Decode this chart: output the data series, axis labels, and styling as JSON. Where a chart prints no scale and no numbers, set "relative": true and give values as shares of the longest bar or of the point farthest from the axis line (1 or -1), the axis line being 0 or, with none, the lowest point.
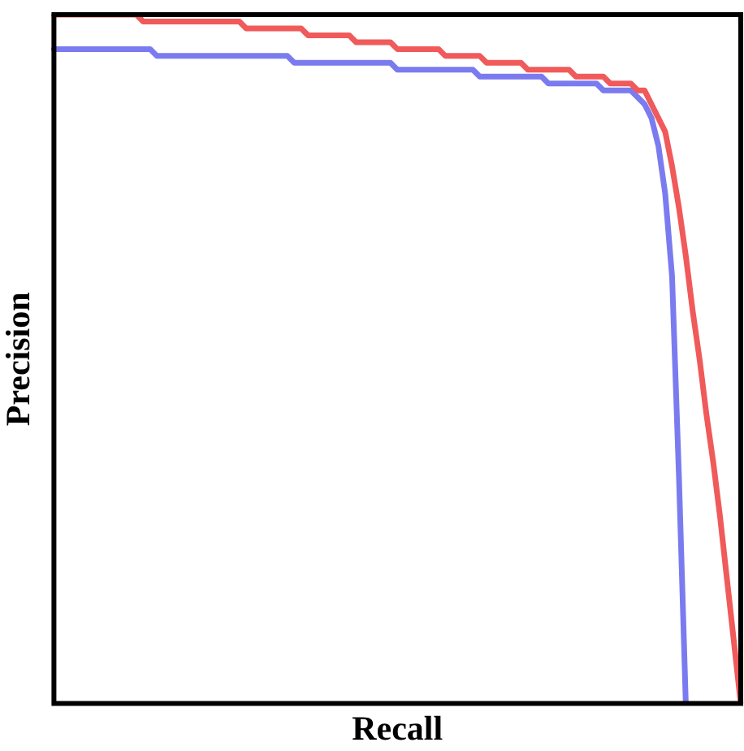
{
  "chart_data": {
    "type": "line",
    "xlabel": "Recall",
    "ylabel": "Precision",
    "relative": true,
    "grid": false,
    "legend": false,
    "marker": "none",
    "line_style": "solid",
    "categories": [
      null,
      null,
      null,
      null,
      null,
      null,
      null,
      null,
      null,
      null,
      null,
      null,
      null,
      null,
      null,
      null,
      null,
      null,
      null,
      null,
      null,
      null,
      null,
      null,
      null,
      null,
      null,
      null,
      null,
      null,
      null,
      null,
      null,
      null,
      null,
      null,
      null,
      null,
      null,
      null,
      null,
      null,
      null,
      null,
      null,
      null,
      null,
      null,
      null,
      null,
      null,
      null,
      null,
      null,
      null,
      null,
      null,
      null,
      null,
      null,
      null,
      null,
      null,
      null,
      null,
      null,
      null,
      null,
      null,
      null,
      null,
      null,
      null,
      null,
      null,
      null,
      null,
      null,
      null,
      null,
      null,
      null,
      null,
      null,
      null,
      null,
      null,
      null,
      null,
      null,
      null,
      null,
      null,
      null,
      null,
      null,
      null,
      null,
      null,
      null,
      null
    ],
    "series": [
      {
        "color": "#f05a5a",
        "values": [
          1,
          1,
          1,
          1,
          1,
          1,
          1,
          1,
          1,
          1,
          1,
          1,
          1,
          0.99,
          0.99,
          0.99,
          0.99,
          0.99,
          0.99,
          0.99,
          0.99,
          0.99,
          0.99,
          0.99,
          0.99,
          0.99,
          0.99,
          0.99,
          0.98,
          0.98,
          0.98,
          0.98,
          0.98,
          0.98,
          0.98,
          0.98,
          0.98,
          0.97,
          0.97,
          0.97,
          0.97,
          0.97,
          0.97,
          0.97,
          0.96,
          0.96,
          0.96,
          0.96,
          0.96,
          0.96,
          0.95,
          0.95,
          0.95,
          0.95,
          0.95,
          0.95,
          0.95,
          0.94,
          0.94,
          0.94,
          0.94,
          0.94,
          0.94,
          0.93,
          0.93,
          0.93,
          0.93,
          0.93,
          0.93,
          0.92,
          0.92,
          0.92,
          0.92,
          0.92,
          0.92,
          0.92,
          0.91,
          0.91,
          0.91,
          0.91,
          0.91,
          0.9,
          0.9,
          0.9,
          0.9,
          0.89,
          0.89,
          0.87,
          0.85,
          0.83,
          0.78,
          0.72,
          0.65,
          0.57,
          0.5,
          0.42,
          0.35,
          0.27,
          0.18,
          0.09,
          0
        ]
      },
      {
        "color": "#7b7bf0",
        "values": [
          0.95,
          0.95,
          0.95,
          0.95,
          0.95,
          0.95,
          0.95,
          0.95,
          0.95,
          0.95,
          0.95,
          0.95,
          0.95,
          0.95,
          0.95,
          0.94,
          0.94,
          0.94,
          0.94,
          0.94,
          0.94,
          0.94,
          0.94,
          0.94,
          0.94,
          0.94,
          0.94,
          0.94,
          0.94,
          0.94,
          0.94,
          0.94,
          0.94,
          0.94,
          0.94,
          0.93,
          0.93,
          0.93,
          0.93,
          0.93,
          0.93,
          0.93,
          0.93,
          0.93,
          0.93,
          0.93,
          0.93,
          0.93,
          0.93,
          0.93,
          0.92,
          0.92,
          0.92,
          0.92,
          0.92,
          0.92,
          0.92,
          0.92,
          0.92,
          0.92,
          0.92,
          0.92,
          0.91,
          0.91,
          0.91,
          0.91,
          0.91,
          0.91,
          0.91,
          0.91,
          0.91,
          0.91,
          0.9,
          0.9,
          0.9,
          0.9,
          0.9,
          0.9,
          0.9,
          0.9,
          0.89,
          0.89,
          0.89,
          0.89,
          0.89,
          0.88,
          0.87,
          0.85,
          0.81,
          0.74,
          0.62,
          0.33,
          0,
          null,
          null,
          null,
          null,
          null,
          null,
          null,
          null
        ]
      }
    ]
  }
}
